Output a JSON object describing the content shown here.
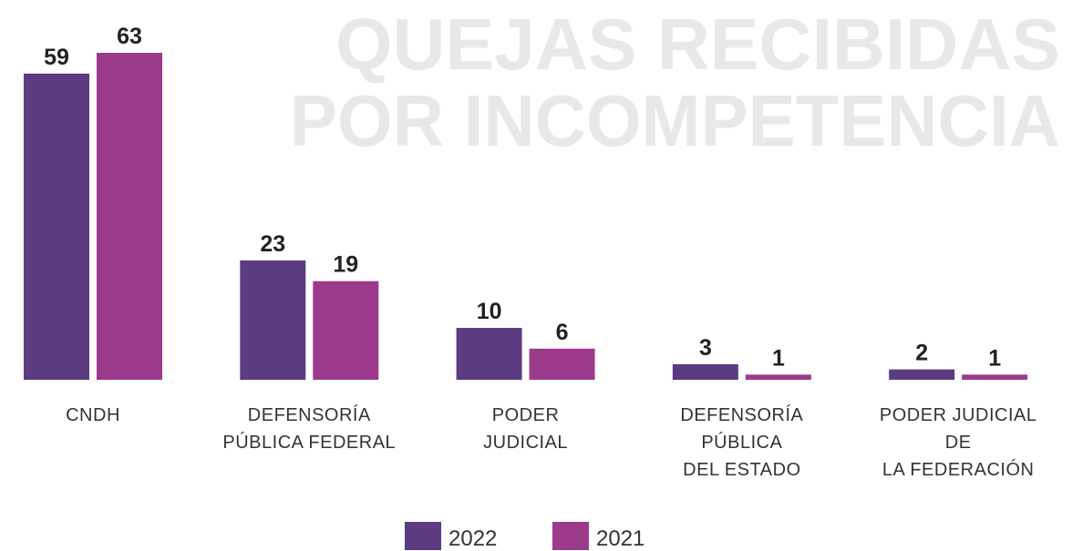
{
  "chart_data": {
    "type": "bar",
    "title": [
      "QUEJAS RECIBIDAS",
      "POR INCOMPETENCIA"
    ],
    "categories": [
      [
        "CNDH"
      ],
      [
        "DEFENSORÍA",
        "PÚBLICA FEDERAL"
      ],
      [
        "PODER",
        "JUDICIAL"
      ],
      [
        "DEFENSORÍA",
        "PÚBLICA",
        "DEL ESTADO"
      ],
      [
        "PODER JUDICIAL",
        "DE",
        "LA FEDERACIÓN"
      ]
    ],
    "series": [
      {
        "name": "2022",
        "color": "#5c3b80",
        "values": [
          59,
          23,
          10,
          3,
          2
        ]
      },
      {
        "name": "2021",
        "color": "#9c3a8c",
        "values": [
          63,
          19,
          6,
          1,
          1
        ]
      }
    ]
  }
}
